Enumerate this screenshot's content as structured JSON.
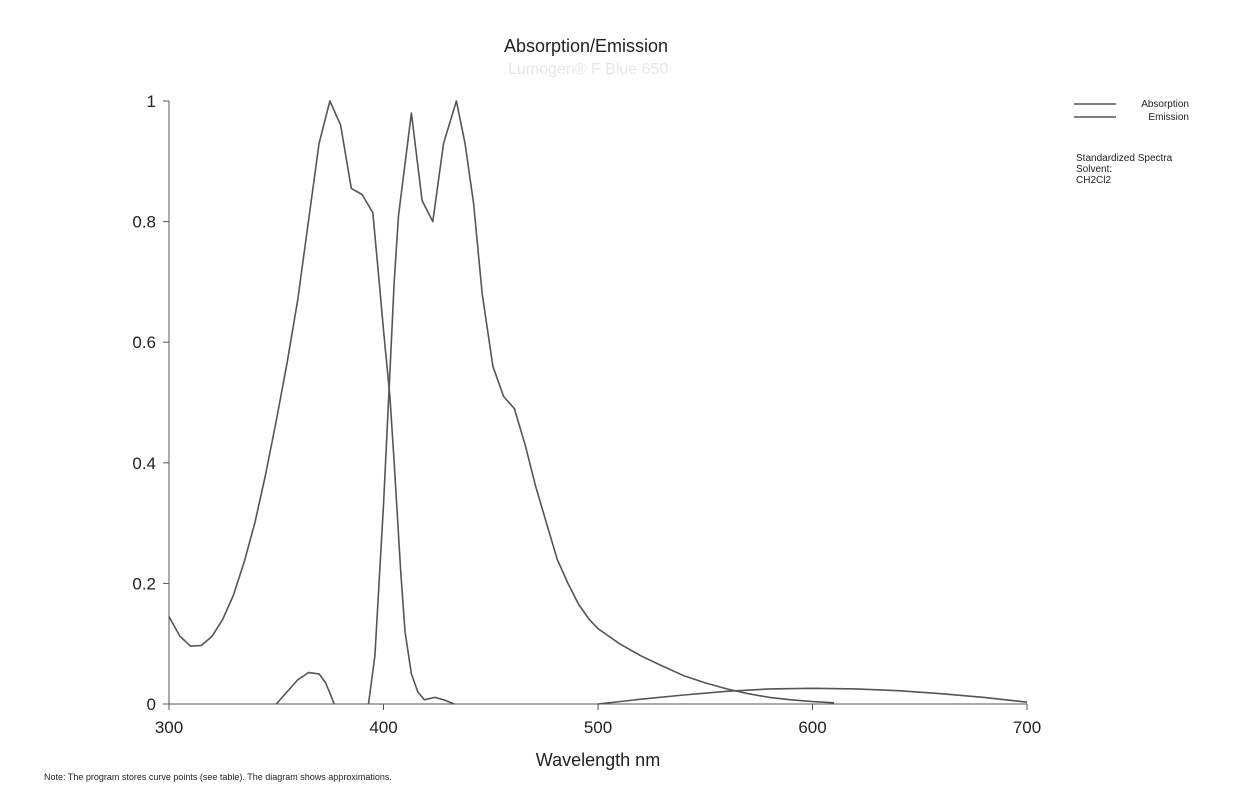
{
  "chart_data": {
    "type": "line",
    "title": "Absorption/Emission",
    "subtitle": "Lumogen® F Blue 650",
    "xlabel": "Wavelength nm",
    "ylabel": "",
    "xlim": [
      300,
      700
    ],
    "ylim": [
      0,
      1
    ],
    "xticks": [
      "300",
      "400",
      "500",
      "600",
      "700"
    ],
    "yticks": [
      "0",
      "0.2",
      "0.4",
      "0.6",
      "0.8",
      "1"
    ],
    "grid": false,
    "legend_position": "top-right",
    "series": [
      {
        "name": "Absorption",
        "color": "#555555",
        "points": [
          [
            300,
            0.145
          ],
          [
            305,
            0.113
          ],
          [
            310,
            0.096
          ],
          [
            315,
            0.097
          ],
          [
            320,
            0.112
          ],
          [
            325,
            0.14
          ],
          [
            330,
            0.18
          ],
          [
            335,
            0.235
          ],
          [
            340,
            0.3
          ],
          [
            345,
            0.38
          ],
          [
            350,
            0.47
          ],
          [
            355,
            0.565
          ],
          [
            360,
            0.67
          ],
          [
            365,
            0.8
          ],
          [
            370,
            0.93
          ],
          [
            375,
            1.0
          ],
          [
            380,
            0.96
          ],
          [
            385,
            0.855
          ],
          [
            390,
            0.845
          ],
          [
            395,
            0.815
          ],
          [
            398,
            0.7
          ],
          [
            400,
            0.62
          ],
          [
            403,
            0.51
          ],
          [
            405,
            0.4
          ],
          [
            408,
            0.22
          ],
          [
            410,
            0.12
          ],
          [
            413,
            0.05
          ],
          [
            416,
            0.02
          ],
          [
            419,
            0.007
          ],
          [
            424,
            0.011
          ],
          [
            428,
            0.007
          ],
          [
            433,
            0.0
          ]
        ]
      },
      {
        "name": "Emission",
        "color": "#555555",
        "points": [
          [
            393,
            0.0
          ],
          [
            396,
            0.08
          ],
          [
            400,
            0.33
          ],
          [
            403,
            0.55
          ],
          [
            405,
            0.7
          ],
          [
            407,
            0.81
          ],
          [
            413,
            0.98
          ],
          [
            418,
            0.835
          ],
          [
            423,
            0.8
          ],
          [
            428,
            0.93
          ],
          [
            434,
            1.0
          ],
          [
            438,
            0.93
          ],
          [
            442,
            0.83
          ],
          [
            446,
            0.68
          ],
          [
            451,
            0.56
          ],
          [
            456,
            0.51
          ],
          [
            461,
            0.49
          ],
          [
            466,
            0.43
          ],
          [
            471,
            0.36
          ],
          [
            476,
            0.3
          ],
          [
            481,
            0.24
          ],
          [
            486,
            0.2
          ],
          [
            491,
            0.165
          ],
          [
            496,
            0.14
          ],
          [
            500,
            0.125
          ],
          [
            510,
            0.1
          ],
          [
            520,
            0.08
          ],
          [
            530,
            0.063
          ],
          [
            540,
            0.047
          ],
          [
            550,
            0.035
          ],
          [
            560,
            0.025
          ],
          [
            570,
            0.017
          ],
          [
            580,
            0.011
          ],
          [
            590,
            0.007
          ],
          [
            600,
            0.004
          ],
          [
            610,
            0.002
          ]
        ]
      },
      {
        "name": "",
        "color": "#555555",
        "points": [
          [
            350,
            0.0
          ],
          [
            355,
            0.02
          ],
          [
            360,
            0.04
          ],
          [
            365,
            0.052
          ],
          [
            370,
            0.05
          ],
          [
            373,
            0.035
          ],
          [
            375,
            0.018
          ],
          [
            377,
            0.0
          ]
        ]
      },
      {
        "name": "",
        "color": "#555555",
        "points": [
          [
            500,
            0.0
          ],
          [
            520,
            0.008
          ],
          [
            540,
            0.015
          ],
          [
            560,
            0.021
          ],
          [
            580,
            0.025
          ],
          [
            600,
            0.026
          ],
          [
            620,
            0.025
          ],
          [
            640,
            0.022
          ],
          [
            660,
            0.017
          ],
          [
            680,
            0.011
          ],
          [
            700,
            0.003
          ]
        ]
      }
    ]
  },
  "info": {
    "line1": "Standardized Spectra",
    "line2": "Solvent:",
    "line3": "CH2Cl2"
  },
  "note": "Note: The program stores curve points (see table). The diagram shows approximations."
}
